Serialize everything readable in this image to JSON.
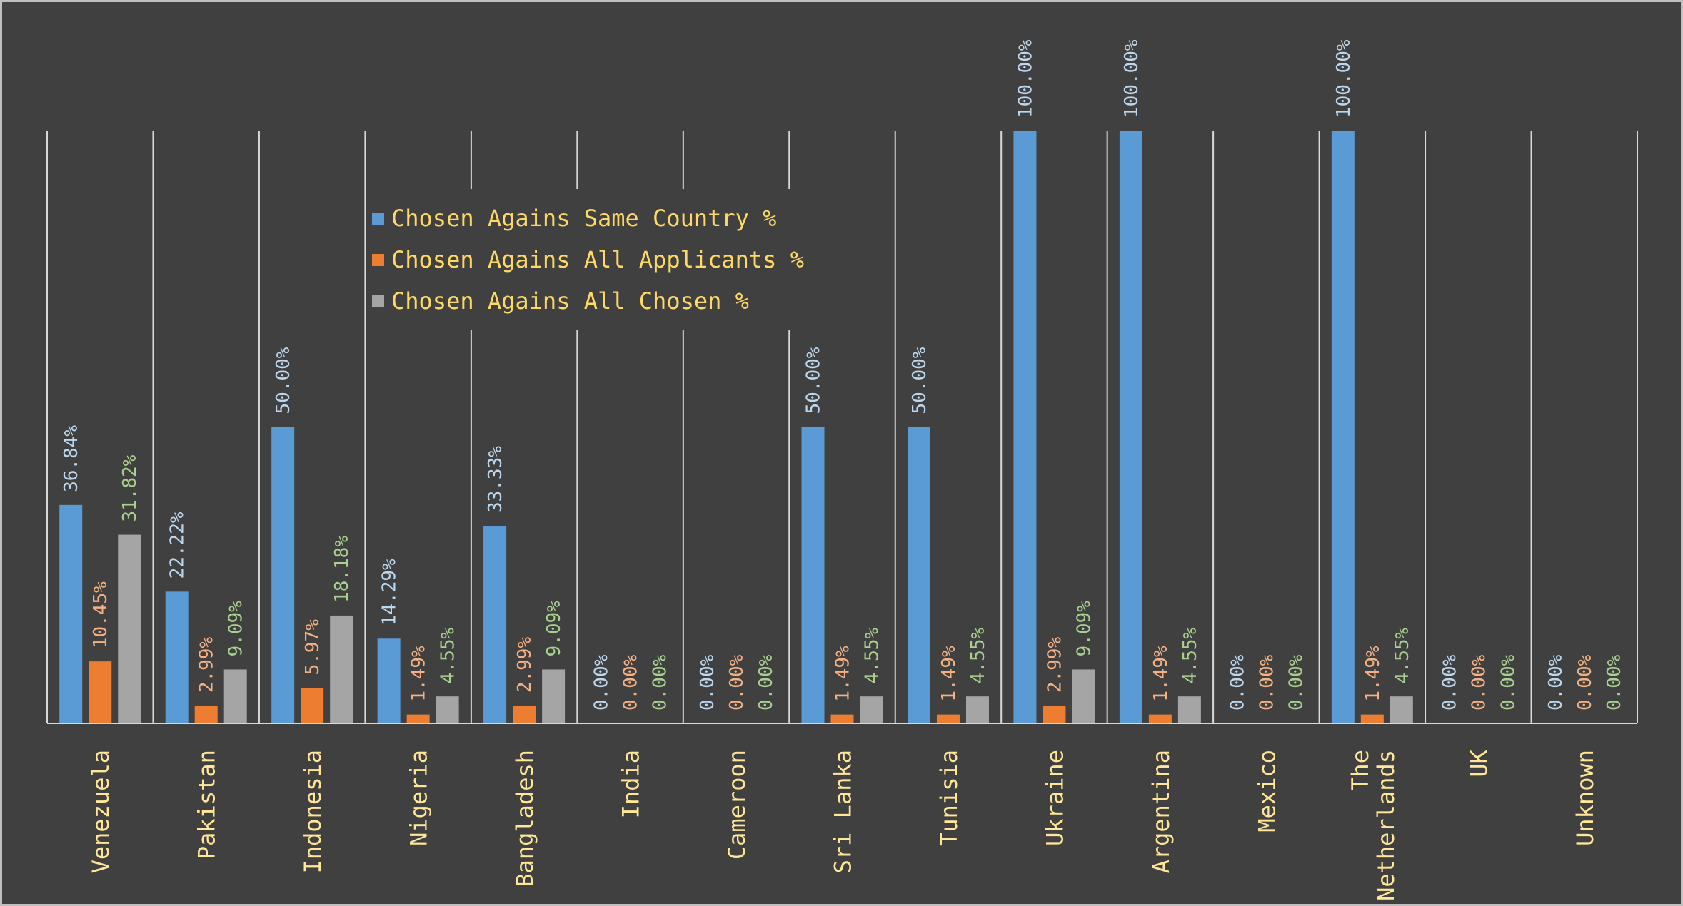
{
  "colors": {
    "background": "#404040",
    "gridline": "#d9d9d9",
    "category_text": "#ffe699",
    "legend_text": "#ffd966"
  },
  "chart_data": {
    "type": "bar",
    "categories": [
      "Venezuela",
      "Pakistan",
      "Indonesia",
      "Nigeria",
      "Bangladesh",
      "India",
      "Cameroon",
      "Sri Lanka",
      "Tunisia",
      "Ukraine",
      "Argentina",
      "Mexico",
      "The Netherlands",
      "UK",
      "Unknown"
    ],
    "category_lines": [
      [
        "Venezuela"
      ],
      [
        "Pakistan"
      ],
      [
        "Indonesia"
      ],
      [
        "Nigeria"
      ],
      [
        "Bangladesh"
      ],
      [
        "India"
      ],
      [
        "Cameroon"
      ],
      [
        "Sri Lanka"
      ],
      [
        "Tunisia"
      ],
      [
        "Ukraine"
      ],
      [
        "Argentina"
      ],
      [
        "Mexico"
      ],
      [
        "The",
        "Netherlands"
      ],
      [
        "UK"
      ],
      [
        "Unknown"
      ]
    ],
    "series": [
      {
        "name": "Chosen Agains Same Country %",
        "color": "#5b9bd5",
        "label_color": "#bdd7ee",
        "values": [
          36.84,
          22.22,
          50.0,
          14.29,
          33.33,
          0.0,
          0.0,
          50.0,
          50.0,
          100.0,
          100.0,
          0.0,
          100.0,
          0.0,
          0.0
        ],
        "labels": [
          "36.84%",
          "22.22%",
          "50.00%",
          "14.29%",
          "33.33%",
          "0.00%",
          "0.00%",
          "50.00%",
          "50.00%",
          "100.00%",
          "100.00%",
          "0.00%",
          "100.00%",
          "0.00%",
          "0.00%"
        ]
      },
      {
        "name": "Chosen Agains All Applicants %",
        "color": "#ed7d31",
        "label_color": "#f4b183",
        "values": [
          10.45,
          2.99,
          5.97,
          1.49,
          2.99,
          0.0,
          0.0,
          1.49,
          1.49,
          2.99,
          1.49,
          0.0,
          1.49,
          0.0,
          0.0
        ],
        "labels": [
          "10.45%",
          "2.99%",
          "5.97%",
          "1.49%",
          "2.99%",
          "0.00%",
          "0.00%",
          "1.49%",
          "1.49%",
          "2.99%",
          "1.49%",
          "0.00%",
          "1.49%",
          "0.00%",
          "0.00%"
        ]
      },
      {
        "name": "Chosen Agains All Chosen %",
        "color": "#a5a5a5",
        "label_color": "#a9d18e",
        "values": [
          31.82,
          9.09,
          18.18,
          4.55,
          9.09,
          0.0,
          0.0,
          4.55,
          4.55,
          9.09,
          4.55,
          0.0,
          4.55,
          0.0,
          0.0
        ],
        "labels": [
          "31.82%",
          "9.09%",
          "18.18%",
          "4.55%",
          "9.09%",
          "0.00%",
          "0.00%",
          "4.55%",
          "4.55%",
          "9.09%",
          "4.55%",
          "0.00%",
          "4.55%",
          "0.00%",
          "0.00%"
        ]
      }
    ],
    "ylim": [
      0,
      100
    ],
    "grid": "vertical-category-separators",
    "legend_position": "top-left-inside",
    "title": "",
    "xlabel": "",
    "ylabel": ""
  }
}
